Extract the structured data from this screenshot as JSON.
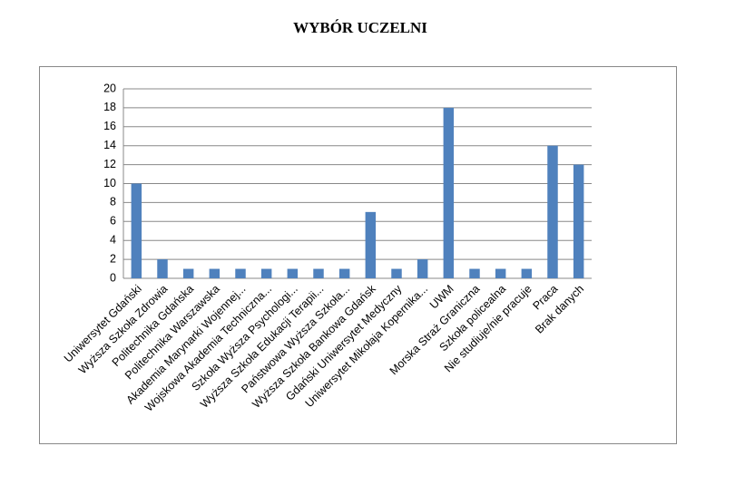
{
  "chart_data": {
    "type": "bar",
    "title": "WYBÓR UCZELNI",
    "categories": [
      "Uniwersytet Gdański",
      "Wyższa Szkoła Zdrowia",
      "Politechnika Gdańska",
      "Politechnika Warszawska",
      "Akademia Marynarki Wojennej...",
      "Wojskowa Akademia Techniczna...",
      "Szkoła Wyższa Psychologi...",
      "Wyższa Szkoła Edukacji Terapii...",
      "Państwowa Wyższa Szkoła...",
      "Wyższa  Szkoła Bankowa Gdańsk",
      "Gdański Uniwersytet Medyczny",
      "Uniwersytet Mikołaja Kopernika...",
      "UWM",
      "Morska Straż Graniczna",
      "Szkoła policealna",
      "Nie studiuje/nie pracuje",
      "Praca",
      "Brak danych"
    ],
    "values": [
      10,
      2,
      1,
      1,
      1,
      1,
      1,
      1,
      1,
      7,
      1,
      2,
      18,
      1,
      1,
      1,
      14,
      12
    ],
    "color": "#4f81bd",
    "ylim": [
      0,
      20
    ],
    "yticks": [
      0,
      2,
      4,
      6,
      8,
      10,
      12,
      14,
      16,
      18,
      20
    ],
    "grid": true
  }
}
